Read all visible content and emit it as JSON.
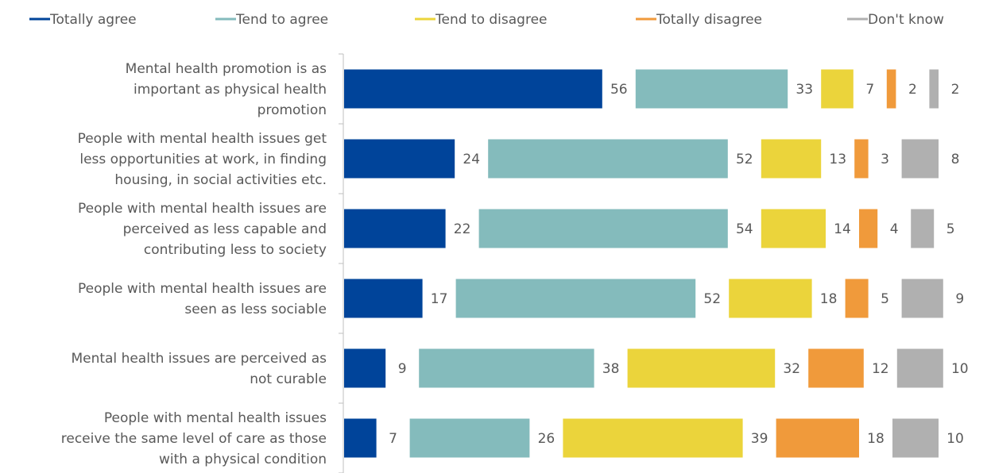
{
  "chart_data": {
    "type": "bar",
    "orientation": "horizontal",
    "stacked": "separated-segments",
    "legend_position": "top",
    "grid": false,
    "title": "",
    "xlabel": "",
    "ylabel": "",
    "categories": [
      [
        "Mental health promotion is as",
        "important as physical health",
        "promotion"
      ],
      [
        "People with mental health issues get",
        "less opportunities at work, in finding",
        "housing, in social activities etc."
      ],
      [
        "People with mental health issues are",
        "perceived as less capable and",
        "contributing less to society"
      ],
      [
        "People with mental health issues are",
        "seen as less sociable"
      ],
      [
        "Mental health issues are perceived as",
        "not curable"
      ],
      [
        "People with mental health issues",
        "receive the same level of care as those",
        "with a physical condition"
      ]
    ],
    "series": [
      {
        "name": "Totally agree",
        "color": "#00449a",
        "values": [
          56,
          24,
          22,
          17,
          9,
          7
        ]
      },
      {
        "name": "Tend to agree",
        "color": "#84bbbc",
        "values": [
          33,
          52,
          54,
          52,
          38,
          26
        ]
      },
      {
        "name": "Tend to disagree",
        "color": "#ebd43b",
        "values": [
          7,
          13,
          14,
          18,
          32,
          39
        ]
      },
      {
        "name": "Totally disagree",
        "color": "#f09a3b",
        "values": [
          2,
          3,
          4,
          5,
          12,
          18
        ]
      },
      {
        "name": "Don't know",
        "color": "#b0b0b0",
        "values": [
          2,
          8,
          5,
          9,
          10,
          10
        ]
      }
    ]
  }
}
